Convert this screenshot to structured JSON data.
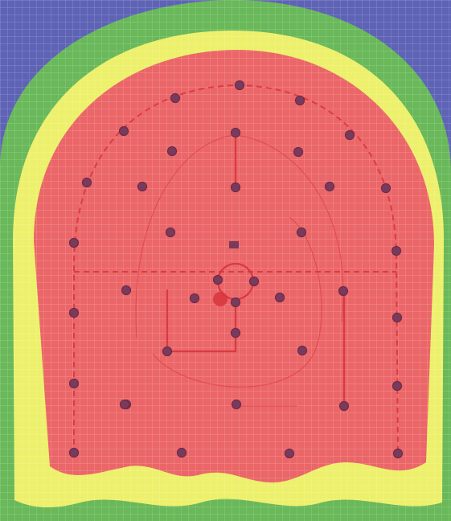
{
  "zones": [
    {
      "name": "outer-zone",
      "color": "#5e63b5"
    },
    {
      "name": "green-zone",
      "color": "#69b85a"
    },
    {
      "name": "yellow-zone",
      "color": "#edf06b"
    },
    {
      "name": "red-zone",
      "color": "#eb6668"
    }
  ],
  "grid_color": "#ffffff",
  "hole_color": "#7a3a5c",
  "guide_color": "#d8343d",
  "hole_count": 42
}
